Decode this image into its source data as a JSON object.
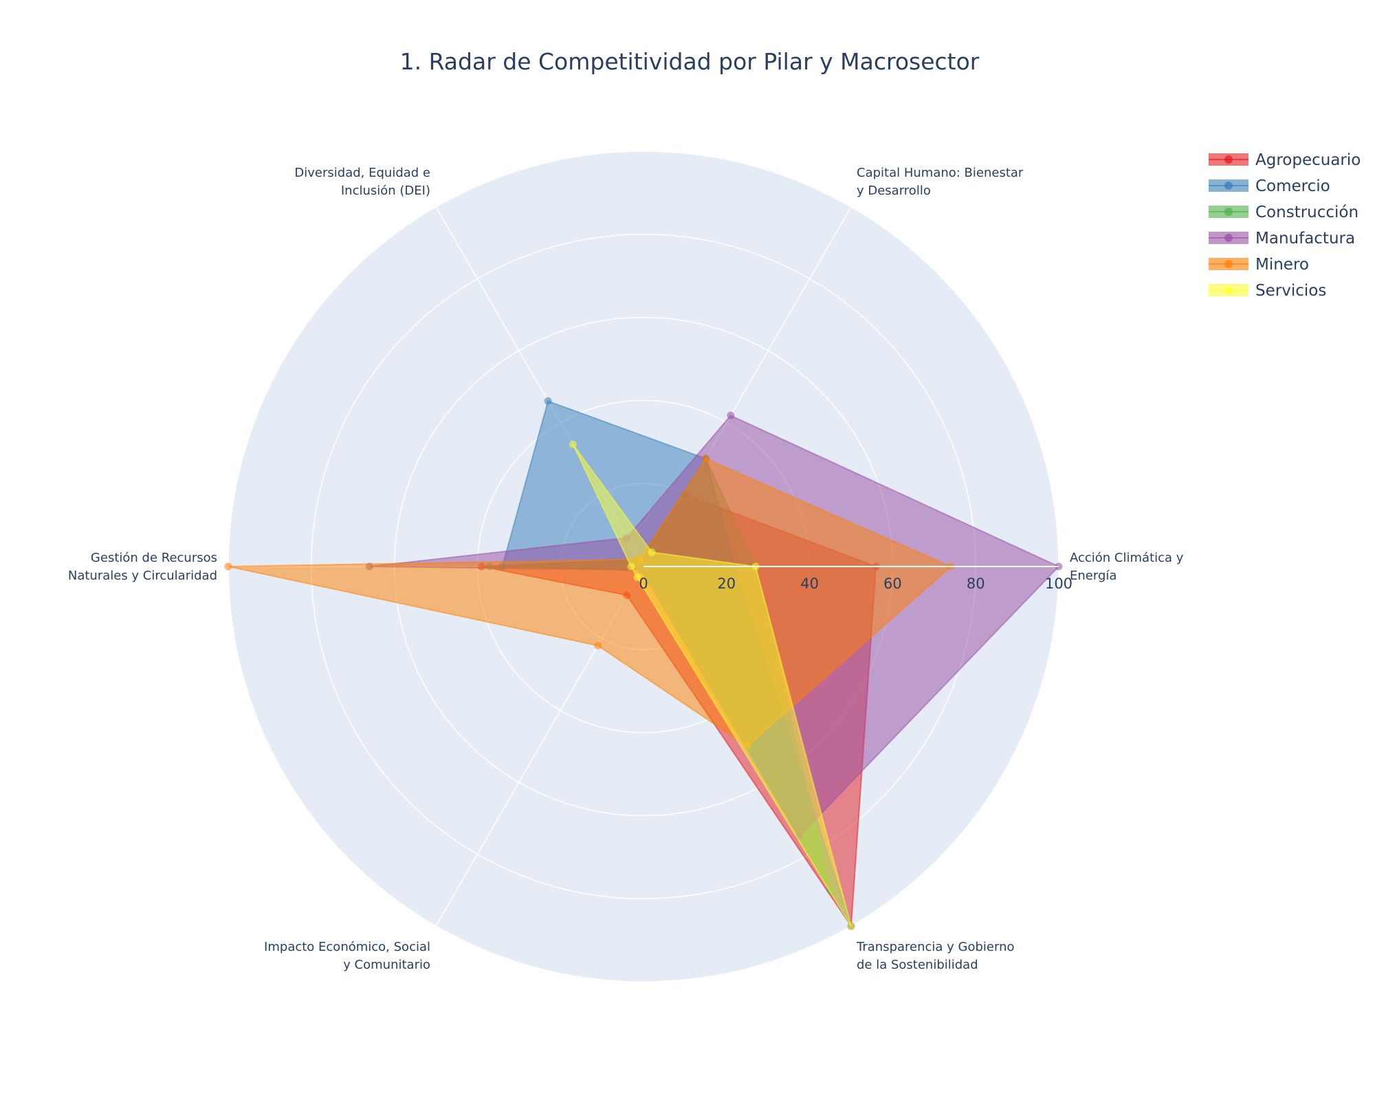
{
  "chart_data": {
    "type": "radar",
    "title": "1. Radar de Competitividad por Pilar y Macrosector",
    "axes": [
      "Acción Climática y Energía",
      "Capital Humano: Bienestar y Desarrollo",
      "Diversidad, Equidad e Inclusión (DEI)",
      "Gestión de Recursos Naturales y Circularidad",
      "Impacto Económico, Social y Comunitario",
      "Transparencia y Gobierno de la Sostenibilidad"
    ],
    "axis_label_lines": [
      [
        "Acción Climática y",
        "Energía"
      ],
      [
        "Capital Humano: Bienestar",
        "y Desarrollo"
      ],
      [
        "Diversidad, Equidad e",
        "Inclusión (DEI)"
      ],
      [
        "Gestión de Recursos",
        "Naturales y Circularidad"
      ],
      [
        "Impacto Económico, Social",
        "y Comunitario"
      ],
      [
        "Transparencia y Gobierno",
        "de la Sostenibilidad"
      ]
    ],
    "radial_range": [
      0,
      100
    ],
    "radial_ticks": [
      "0",
      "20",
      "40",
      "60",
      "80",
      "100"
    ],
    "grid": true,
    "legend_position": "top-right",
    "series": [
      {
        "name": "Agropecuario",
        "color": "#e41a1c",
        "values": [
          56,
          20,
          2,
          39,
          8,
          100
        ]
      },
      {
        "name": "Comercio",
        "color": "#377eb8",
        "values": [
          22,
          30,
          46,
          34,
          1,
          100
        ]
      },
      {
        "name": "Construcción",
        "color": "#4daf4a",
        "values": [
          27,
          30,
          2,
          37,
          1,
          90
        ]
      },
      {
        "name": "Manufactura",
        "color": "#984ea3",
        "values": [
          100,
          42,
          8,
          66,
          1,
          75
        ]
      },
      {
        "name": "Minero",
        "color": "#ff7f00",
        "values": [
          74,
          30,
          2,
          100,
          22,
          50
        ]
      },
      {
        "name": "Servicios",
        "color": "#ffff33",
        "values": [
          27,
          4,
          34,
          3,
          3,
          100
        ]
      }
    ]
  }
}
